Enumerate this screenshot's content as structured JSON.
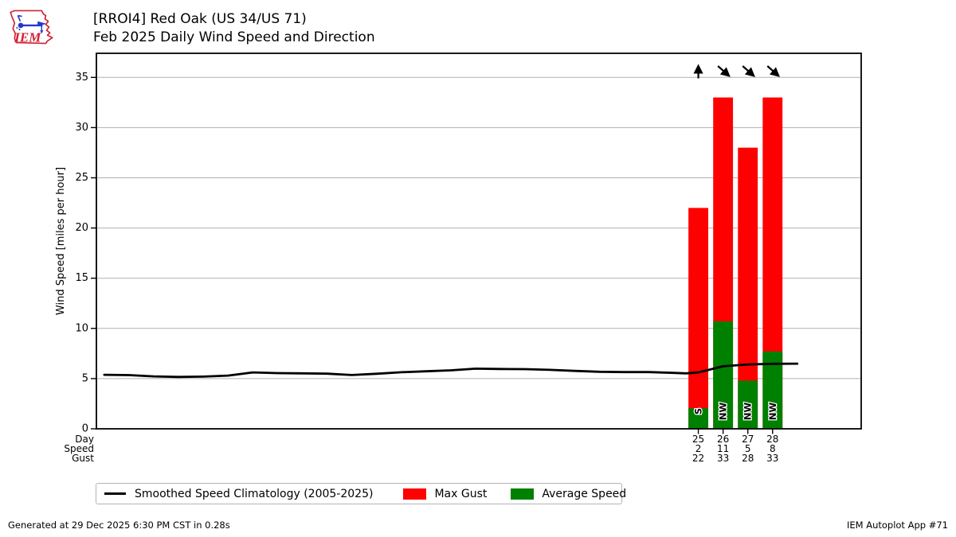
{
  "header": {
    "title_line1": "[RROI4] Red Oak (US 34/US 71)",
    "title_line2": "Feb 2025 Daily Wind Speed and Direction",
    "logo_text": "IEM"
  },
  "footer": {
    "generated": "Generated at 29 Dec 2025 6:30 PM CST in 0.28s",
    "app": "IEM Autoplot App #71"
  },
  "legend": {
    "position": "bottom",
    "items": [
      {
        "type": "line",
        "label": "Smoothed Speed Climatology (2005-2025)"
      },
      {
        "type": "patch",
        "label": "Max Gust"
      },
      {
        "type": "patch",
        "label": "Average Speed"
      }
    ]
  },
  "chart_data": {
    "type": "bar",
    "title": "[RROI4] Red Oak (US 34/US 71) — Feb 2025 Daily Wind Speed and Direction",
    "xlabel": "",
    "ylabel": "Wind Speed [miles per hour]",
    "yticks": [
      0,
      5,
      10,
      15,
      20,
      25,
      30,
      35
    ],
    "ylim": [
      0,
      37.4
    ],
    "xlim": [
      0.68,
      31.58
    ],
    "grid": "horizontal-on",
    "bar_width_days": 0.8,
    "axis_rows": {
      "headers": [
        "Day",
        "Speed",
        "Gust"
      ]
    },
    "days": [
      {
        "day": 25,
        "speed_label": "2",
        "gust_label": "22",
        "speed": 2.06,
        "gust": 22,
        "dir": "S",
        "arrow": "up"
      },
      {
        "day": 26,
        "speed_label": "11",
        "gust_label": "33",
        "speed": 10.7,
        "gust": 33,
        "dir": "NW",
        "arrow": "se"
      },
      {
        "day": 27,
        "speed_label": "5",
        "gust_label": "28",
        "speed": 4.8,
        "gust": 28,
        "dir": "NW",
        "arrow": "se"
      },
      {
        "day": 28,
        "speed_label": "8",
        "gust_label": "33",
        "speed": 7.7,
        "gust": 33,
        "dir": "NW",
        "arrow": "se"
      }
    ],
    "series": [
      {
        "name": "Smoothed Speed Climatology (2005-2025)",
        "type": "line",
        "x": [
          1,
          2,
          3,
          4,
          5,
          6,
          7,
          8,
          9,
          10,
          11,
          12,
          13,
          14,
          15,
          16,
          17,
          18,
          19,
          20,
          21,
          22,
          23,
          24,
          24.5,
          25,
          26,
          27,
          28,
          29
        ],
        "y": [
          5.38,
          5.35,
          5.22,
          5.17,
          5.2,
          5.3,
          5.62,
          5.55,
          5.52,
          5.49,
          5.36,
          5.48,
          5.63,
          5.73,
          5.82,
          5.99,
          5.96,
          5.94,
          5.87,
          5.77,
          5.68,
          5.65,
          5.65,
          5.57,
          5.52,
          5.62,
          6.23,
          6.41,
          6.47,
          6.49
        ]
      },
      {
        "name": "Max Gust",
        "type": "bar",
        "x": [
          25,
          26,
          27,
          28
        ],
        "y": [
          22,
          33,
          28,
          33
        ]
      },
      {
        "name": "Average Speed",
        "type": "bar",
        "x": [
          25,
          26,
          27,
          28
        ],
        "y": [
          2.06,
          10.7,
          4.8,
          7.7
        ]
      }
    ],
    "colors": {
      "max_gust": "#ff0000",
      "avg_speed": "#008000",
      "climatology": "#000000",
      "grid": "#b0b0b0",
      "spine": "#000000",
      "logo_red": "#cf2233",
      "logo_blue": "#2239c9"
    }
  }
}
